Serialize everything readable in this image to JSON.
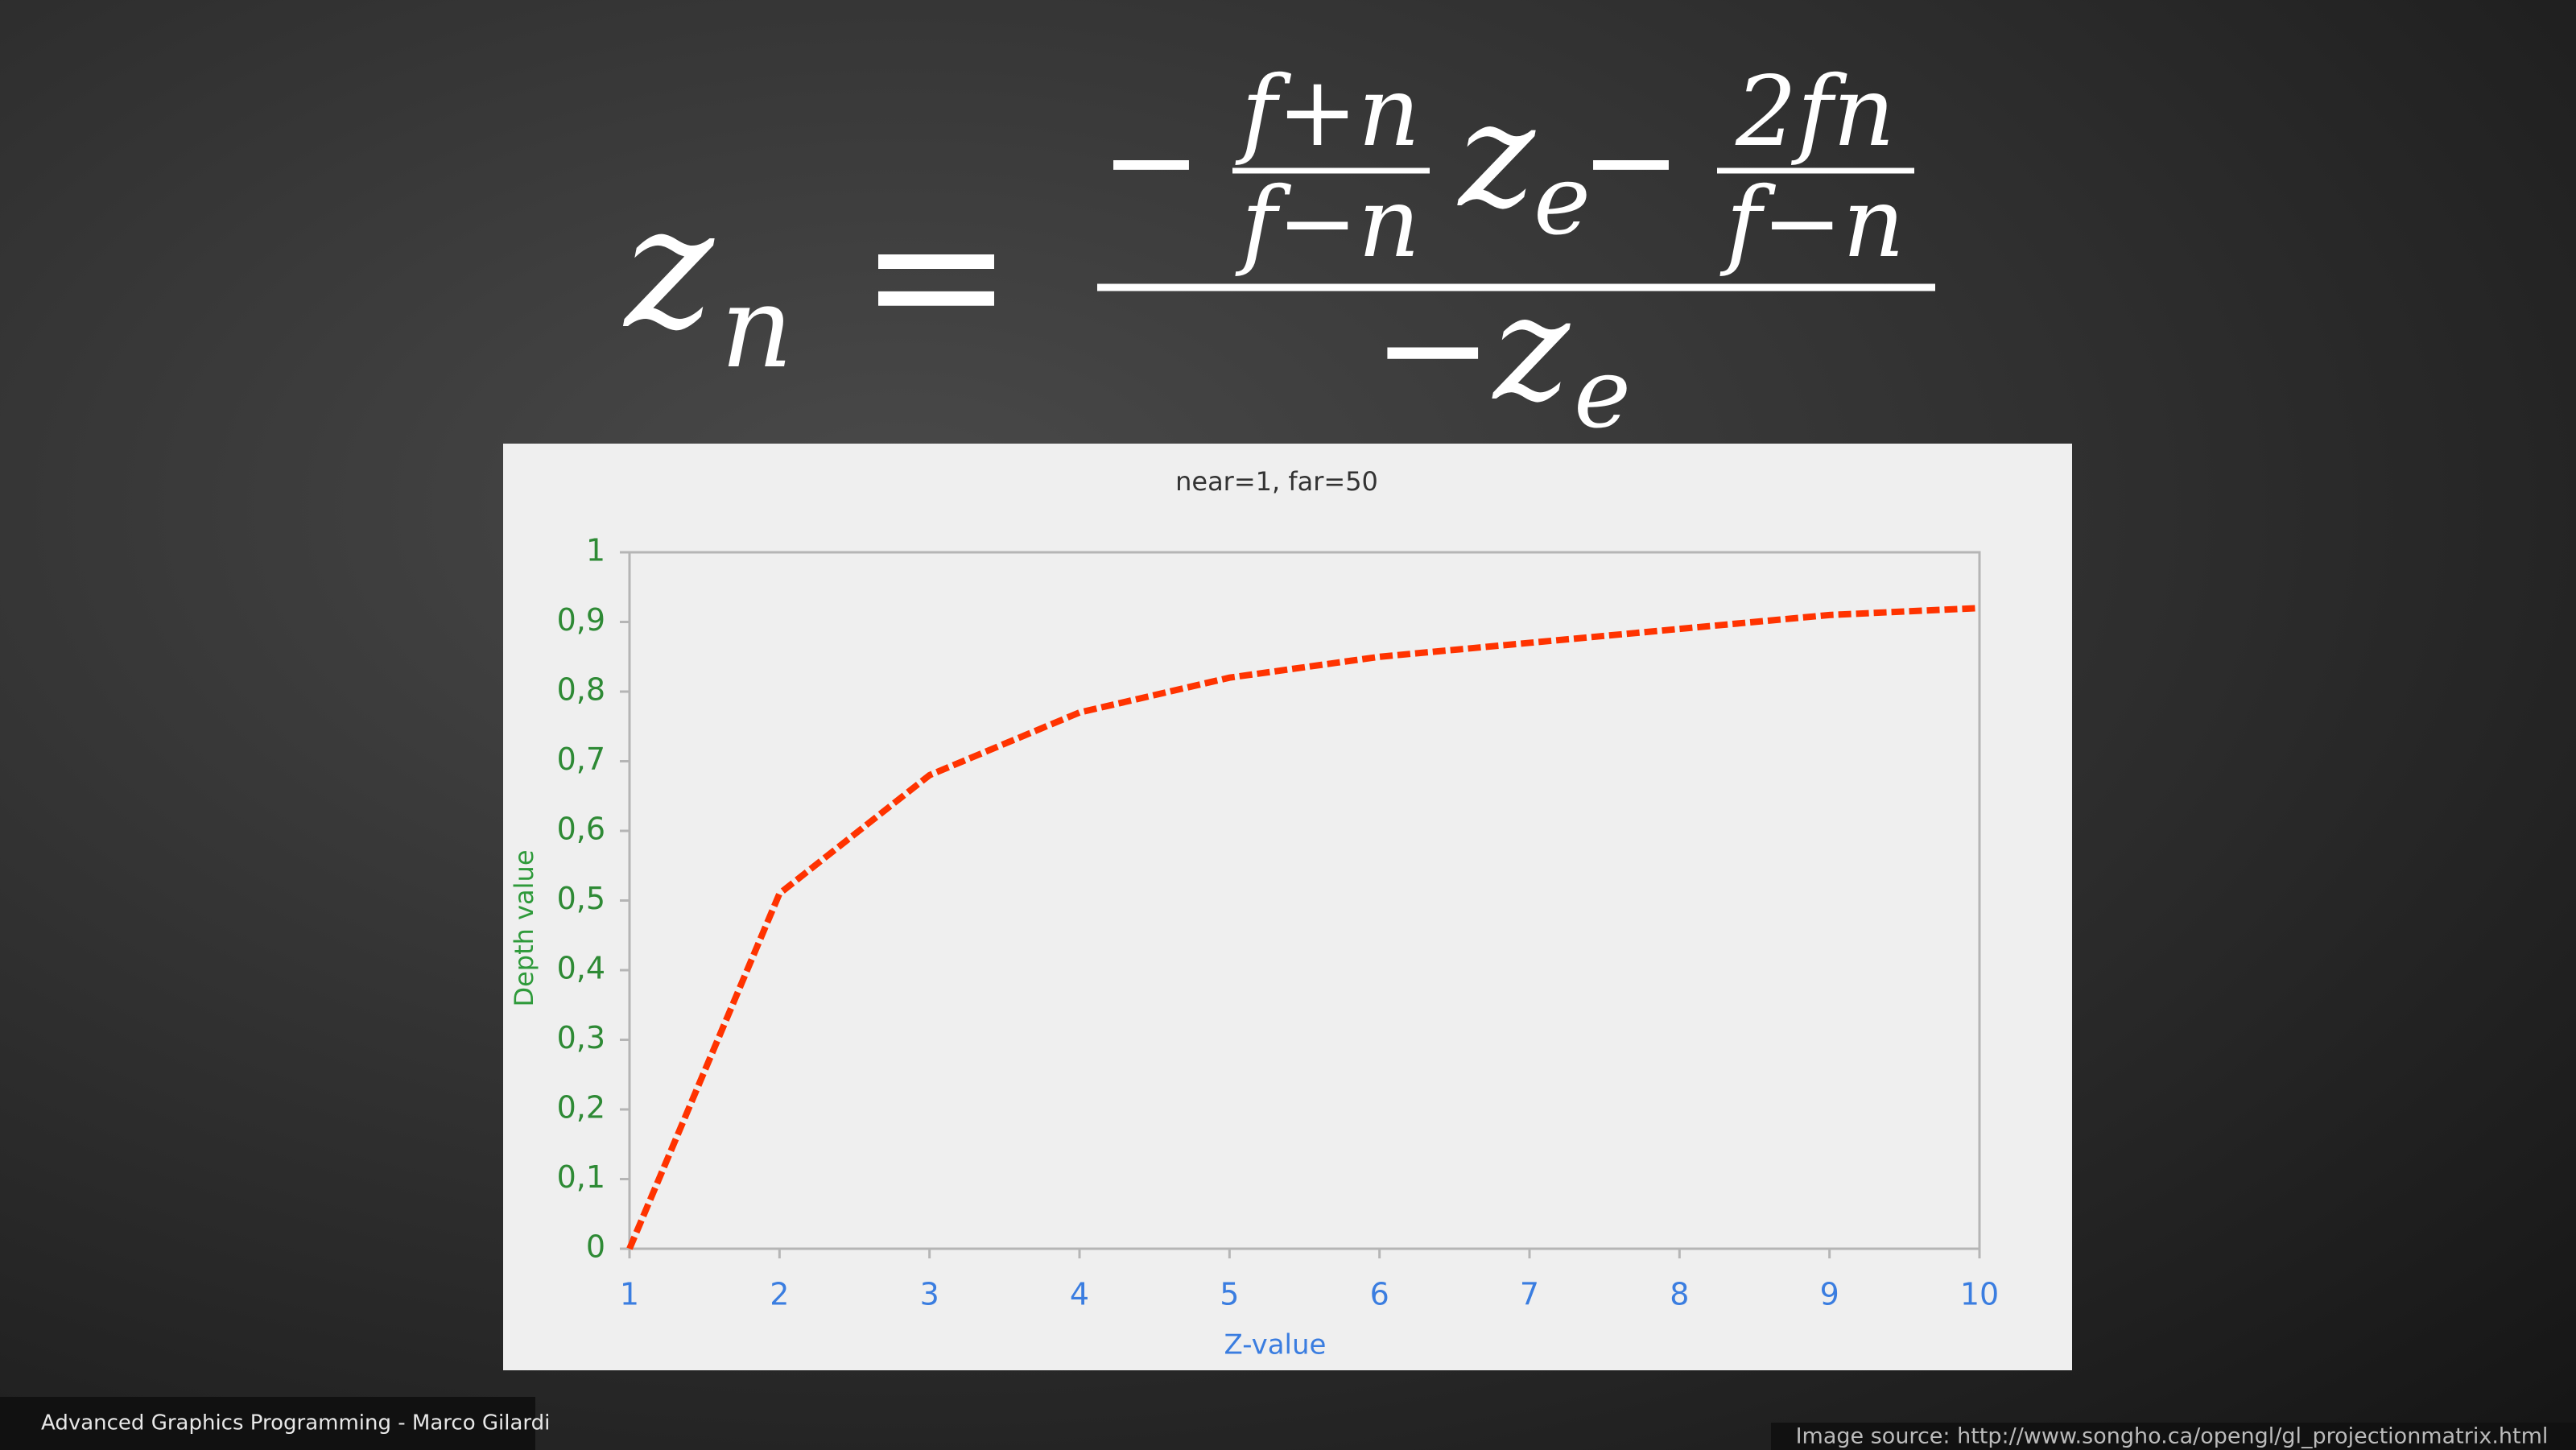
{
  "formula": {
    "lhs": "z",
    "lhs_sub": "n",
    "equals": "=",
    "num_minus": "−",
    "frac1_num": "f+n",
    "frac1_den": "f−n",
    "num_var": "z",
    "num_var_sub": "e",
    "num_op": "−",
    "frac2_num": "2fn",
    "frac2_den": "f−n",
    "den": "−z",
    "den_sub": "e"
  },
  "chart_data": {
    "type": "line",
    "title": "near=1, far=50",
    "x_label": "Z-value",
    "y_label": "Depth value",
    "x": [
      1,
      2,
      3,
      4,
      5,
      6,
      7,
      8,
      9,
      10
    ],
    "values": [
      0,
      0.51,
      0.68,
      0.77,
      0.82,
      0.85,
      0.87,
      0.89,
      0.91,
      0.92
    ],
    "color": "#ff3300",
    "dashed": true,
    "grid": false,
    "xlim": [
      1,
      10
    ],
    "xticks": [
      1,
      2,
      3,
      4,
      5,
      6,
      7,
      8,
      9,
      10
    ],
    "ylim": [
      0,
      1
    ],
    "yticks": [
      0,
      {
        "value": 0.1,
        "label": "0,1"
      },
      {
        "value": 0.2,
        "label": "0,2"
      },
      {
        "value": 0.3,
        "label": "0,3"
      },
      {
        "value": 0.4,
        "label": "0,4"
      },
      {
        "value": 0.5,
        "label": "0,5"
      },
      {
        "value": 0.6,
        "label": "0,6"
      },
      {
        "value": 0.7,
        "label": "0,7"
      },
      {
        "value": 0.8,
        "label": "0,8"
      },
      {
        "value": 0.9,
        "label": "0,9"
      },
      1
    ]
  },
  "footer": {
    "left": "Advanced Graphics Programming - Marco Gilardi",
    "right": "Image source: http://www.songho.ca/opengl/gl_projectionmatrix.html"
  }
}
